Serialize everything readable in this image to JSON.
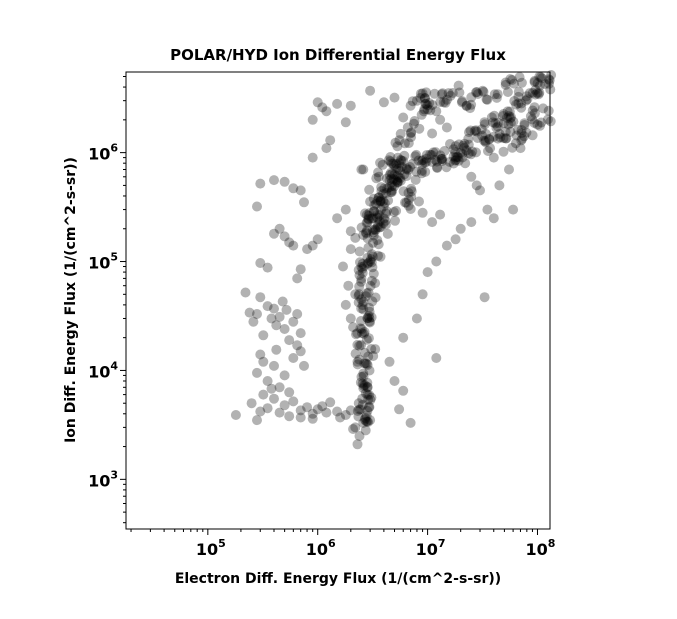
{
  "chart_data": {
    "type": "scatter",
    "title": "POLAR/HYD  Ion Differential Energy Flux",
    "xlabel": "Electron Diff. Energy Flux (1/(cm^2-s-sr))",
    "ylabel": "Ion Diff. Energy Flux (1/(cm^2-s-sr))",
    "xscale": "log",
    "yscale": "log",
    "xlim": [
      18000,
      130000000
    ],
    "ylim": [
      350,
      5500000
    ],
    "grid": false,
    "legend": "none",
    "marker_color": "#000000",
    "marker_alpha": 0.3,
    "x_ticks": [
      {
        "base": "10",
        "exp": "5",
        "value": 100000
      },
      {
        "base": "10",
        "exp": "6",
        "value": 1000000
      },
      {
        "base": "10",
        "exp": "7",
        "value": 10000000
      },
      {
        "base": "10",
        "exp": "8",
        "value": 100000000
      }
    ],
    "y_ticks": [
      {
        "base": "10",
        "exp": "3",
        "value": 1000
      },
      {
        "base": "10",
        "exp": "4",
        "value": 10000
      },
      {
        "base": "10",
        "exp": "5",
        "value": 100000
      },
      {
        "base": "10",
        "exp": "6",
        "value": 1000000
      }
    ],
    "points": [
      [
        180000,
        3900
      ],
      [
        250000,
        5000
      ],
      [
        280000,
        3500
      ],
      [
        300000,
        4200
      ],
      [
        320000,
        6000
      ],
      [
        350000,
        4500
      ],
      [
        400000,
        5500
      ],
      [
        450000,
        4100
      ],
      [
        500000,
        4800
      ],
      [
        550000,
        3800
      ],
      [
        600000,
        5200
      ],
      [
        700000,
        4300
      ],
      [
        800000,
        4600
      ],
      [
        900000,
        4000
      ],
      [
        1000000,
        4400
      ],
      [
        1200000,
        4100
      ],
      [
        1500000,
        4200
      ],
      [
        1800000,
        3900
      ],
      [
        2000000,
        4300
      ],
      [
        2200000,
        3000
      ],
      [
        2300000,
        2100
      ],
      [
        2400000,
        2500
      ],
      [
        2600000,
        3300
      ],
      [
        3000000,
        3500
      ],
      [
        900000,
        3600
      ],
      [
        700000,
        3700
      ],
      [
        1100000,
        4700
      ],
      [
        1300000,
        5100
      ],
      [
        1600000,
        3700
      ],
      [
        2100000,
        2900
      ],
      [
        220000,
        52000
      ],
      [
        240000,
        34000
      ],
      [
        260000,
        28000
      ],
      [
        280000,
        33000
      ],
      [
        300000,
        47000
      ],
      [
        320000,
        21000
      ],
      [
        350000,
        39000
      ],
      [
        380000,
        30000
      ],
      [
        400000,
        37000
      ],
      [
        420000,
        26000
      ],
      [
        450000,
        31000
      ],
      [
        480000,
        43000
      ],
      [
        500000,
        24000
      ],
      [
        520000,
        36000
      ],
      [
        550000,
        19000
      ],
      [
        600000,
        28000
      ],
      [
        650000,
        33000
      ],
      [
        700000,
        22000
      ],
      [
        650000,
        17000
      ],
      [
        300000,
        14000
      ],
      [
        280000,
        9500
      ],
      [
        320000,
        12000
      ],
      [
        350000,
        8000
      ],
      [
        400000,
        11000
      ],
      [
        450000,
        7000
      ],
      [
        500000,
        9000
      ],
      [
        600000,
        13000
      ],
      [
        700000,
        15000
      ],
      [
        750000,
        11000
      ],
      [
        550000,
        6300
      ],
      [
        380000,
        6800
      ],
      [
        420000,
        15500
      ],
      [
        300000,
        97000
      ],
      [
        350000,
        88000
      ],
      [
        700000,
        85000
      ],
      [
        650000,
        70000
      ],
      [
        400000,
        180000
      ],
      [
        500000,
        170000
      ],
      [
        550000,
        150000
      ],
      [
        450000,
        200000
      ],
      [
        600000,
        140000
      ],
      [
        900000,
        140000
      ],
      [
        800000,
        130000
      ],
      [
        1000000,
        160000
      ],
      [
        300000,
        520000
      ],
      [
        280000,
        320000
      ],
      [
        400000,
        560000
      ],
      [
        500000,
        540000
      ],
      [
        600000,
        470000
      ],
      [
        700000,
        450000
      ],
      [
        750000,
        350000
      ],
      [
        900000,
        900000
      ],
      [
        1000000,
        2900000
      ],
      [
        1100000,
        2600000
      ],
      [
        1200000,
        2400000
      ],
      [
        900000,
        2000000
      ],
      [
        1500000,
        2800000
      ],
      [
        2000000,
        2700000
      ],
      [
        1800000,
        1900000
      ],
      [
        1300000,
        1300000
      ],
      [
        1200000,
        1100000
      ],
      [
        2500000,
        700000
      ],
      [
        3000000,
        3700000
      ],
      [
        4000000,
        2900000
      ],
      [
        5000000,
        3200000
      ],
      [
        7000000,
        2700000
      ],
      [
        9000000,
        3500000
      ],
      [
        10000000,
        2500000
      ],
      [
        12000000,
        2400000
      ],
      [
        13000000,
        2000000
      ],
      [
        15000000,
        1700000
      ],
      [
        8000000,
        3000000
      ],
      [
        6000000,
        2100000
      ],
      [
        14000000,
        2900000
      ],
      [
        11000000,
        1500000
      ],
      [
        20000000,
        1000000
      ],
      [
        22000000,
        800000
      ],
      [
        25000000,
        600000
      ],
      [
        30000000,
        450000
      ],
      [
        35000000,
        300000
      ],
      [
        40000000,
        250000
      ],
      [
        28000000,
        500000
      ],
      [
        18000000,
        900000
      ],
      [
        16000000,
        1200000
      ],
      [
        33000000,
        47000
      ],
      [
        12000000,
        13000
      ],
      [
        7000000,
        3300
      ],
      [
        5500000,
        4400
      ],
      [
        6000000,
        6500
      ],
      [
        5000000,
        8000
      ],
      [
        4500000,
        12000
      ],
      [
        6000000,
        20000
      ],
      [
        8000000,
        30000
      ],
      [
        9000000,
        50000
      ],
      [
        10000000,
        80000
      ],
      [
        12000000,
        100000
      ],
      [
        15000000,
        140000
      ],
      [
        18000000,
        160000
      ],
      [
        20000000,
        200000
      ],
      [
        25000000,
        230000
      ],
      [
        13000000,
        270000
      ],
      [
        11000000,
        230000
      ],
      [
        9000000,
        280000
      ],
      [
        1800000,
        300000
      ],
      [
        1500000,
        250000
      ],
      [
        2000000,
        130000
      ],
      [
        1700000,
        90000
      ],
      [
        2200000,
        50000
      ],
      [
        1800000,
        40000
      ],
      [
        2000000,
        30000
      ],
      [
        2300000,
        12000
      ],
      [
        2100000,
        25000
      ],
      [
        1900000,
        60000
      ],
      [
        2600000,
        700000
      ],
      [
        2500000,
        45000
      ],
      [
        2400000,
        75000
      ],
      [
        2200000,
        165000
      ],
      [
        2000000,
        190000
      ],
      [
        45000000,
        500000
      ],
      [
        55000000,
        700000
      ],
      [
        40000000,
        900000
      ],
      [
        60000000,
        300000
      ],
      [
        70000000,
        1100000
      ]
    ],
    "dense_chains": [
      {
        "from": [
          2600000,
          3000
        ],
        "to": [
          2700000,
          12000
        ],
        "n": 40,
        "spread": 0.07
      },
      {
        "from": [
          2700000,
          12000
        ],
        "to": [
          2800000,
          80000
        ],
        "n": 50,
        "spread": 0.09
      },
      {
        "from": [
          2800000,
          80000
        ],
        "to": [
          3300000,
          300000
        ],
        "n": 45,
        "spread": 0.1
      },
      {
        "from": [
          3300000,
          300000
        ],
        "to": [
          5000000,
          700000
        ],
        "n": 45,
        "spread": 0.1
      },
      {
        "from": [
          5000000,
          700000
        ],
        "to": [
          15000000,
          900000
        ],
        "n": 50,
        "spread": 0.09
      },
      {
        "from": [
          15000000,
          900000
        ],
        "to": [
          50000000,
          2000000
        ],
        "n": 50,
        "spread": 0.09
      },
      {
        "from": [
          50000000,
          2000000
        ],
        "to": [
          130000000,
          5000000
        ],
        "n": 40,
        "spread": 0.09
      },
      {
        "from": [
          4000000,
          650000
        ],
        "to": [
          9000000,
          3000000
        ],
        "n": 30,
        "spread": 0.09
      },
      {
        "from": [
          9000000,
          3000000
        ],
        "to": [
          20000000,
          3500000
        ],
        "n": 20,
        "spread": 0.09
      },
      {
        "from": [
          40000000,
          1100000
        ],
        "to": [
          130000000,
          2300000
        ],
        "n": 35,
        "spread": 0.08
      },
      {
        "from": [
          20000000,
          2800000
        ],
        "to": [
          70000000,
          4500000
        ],
        "n": 25,
        "spread": 0.08
      },
      {
        "from": [
          3500000,
          200000
        ],
        "to": [
          7000000,
          450000
        ],
        "n": 30,
        "spread": 0.11
      }
    ]
  }
}
